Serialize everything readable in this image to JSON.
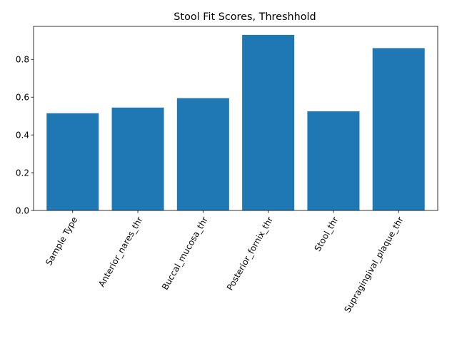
{
  "chart_data": {
    "type": "bar",
    "title": "Stool Fit Scores, Threshhold",
    "xlabel": "",
    "ylabel": "",
    "categories": [
      "Sample Type",
      "Anterior_nares_thr",
      "Buccal_mucosa_thr",
      "Posterior_fornix_thr",
      "Stool_thr",
      "Supragingival_plaque_thr"
    ],
    "values": [
      0.515,
      0.545,
      0.595,
      0.93,
      0.525,
      0.86
    ],
    "ylim": [
      0,
      0.975
    ],
    "yticks": [
      0.0,
      0.2,
      0.4,
      0.6,
      0.8
    ],
    "ytick_labels": [
      "0.0",
      "0.2",
      "0.4",
      "0.6",
      "0.8"
    ],
    "bar_color": "#1f77b4",
    "grid": false,
    "legend": "none",
    "xtick_rotation_deg": 60
  }
}
